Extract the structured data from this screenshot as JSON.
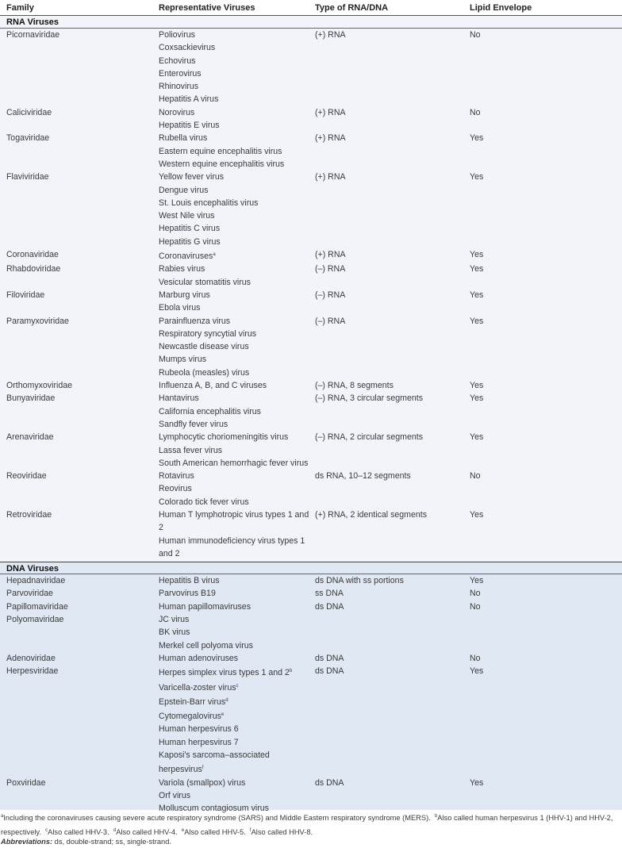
{
  "headers": {
    "family": "Family",
    "viruses": "Representative Viruses",
    "type": "Type of RNA/DNA",
    "envelope": "Lipid Envelope"
  },
  "sections": [
    {
      "title": "RNA Viruses",
      "rows": [
        {
          "family": "Picornaviridae",
          "viruses": [
            "Poliovirus",
            "Coxsackievirus",
            "Echovirus",
            "Enterovirus",
            "Rhinovirus",
            "Hepatitis A virus"
          ],
          "type": "(+) RNA",
          "envelope": "No"
        },
        {
          "family": "Caliciviridae",
          "viruses": [
            "Norovirus",
            "Hepatitis E virus"
          ],
          "type": "(+) RNA",
          "envelope": "No"
        },
        {
          "family": "Togaviridae",
          "viruses": [
            "Rubella virus",
            "Eastern equine encephalitis virus",
            "Western equine encephalitis virus"
          ],
          "type": "(+) RNA",
          "envelope": "Yes"
        },
        {
          "family": "Flaviviridae",
          "viruses": [
            "Yellow fever virus",
            "Dengue virus",
            "St. Louis encephalitis virus",
            "West Nile virus",
            "Hepatitis C virus",
            "Hepatitis G virus"
          ],
          "type": "(+) RNA",
          "envelope": "Yes"
        },
        {
          "family": "Coronaviridae",
          "viruses": [
            "Coronaviruses|a"
          ],
          "type": "(+) RNA",
          "envelope": "Yes"
        },
        {
          "family": "Rhabdoviridae",
          "viruses": [
            "Rabies virus",
            "Vesicular stomatitis virus"
          ],
          "type": "(–) RNA",
          "envelope": "Yes"
        },
        {
          "family": "Filoviridae",
          "viruses": [
            "Marburg virus",
            "Ebola virus"
          ],
          "type": "(–) RNA",
          "envelope": "Yes"
        },
        {
          "family": "Paramyxoviridae",
          "viruses": [
            "Parainfluenza virus",
            "Respiratory syncytial virus",
            "Newcastle disease virus",
            "Mumps virus",
            "Rubeola (measles) virus"
          ],
          "type": "(–) RNA",
          "envelope": "Yes"
        },
        {
          "family": "Orthomyxoviridae",
          "viruses": [
            "Influenza A, B, and C viruses"
          ],
          "type": "(–) RNA, 8 segments",
          "envelope": "Yes"
        },
        {
          "family": "Bunyaviridae",
          "viruses": [
            "Hantavirus",
            "California encephalitis virus",
            "Sandfly fever virus"
          ],
          "type": "(–) RNA, 3 circular segments",
          "envelope": "Yes"
        },
        {
          "family": "Arenaviridae",
          "viruses": [
            "Lymphocytic choriomeningitis virus",
            "Lassa fever virus",
            "South American hemorrhagic fever virus"
          ],
          "type": "(–) RNA, 2 circular segments",
          "envelope": "Yes"
        },
        {
          "family": "Reoviridae",
          "viruses": [
            "Rotavirus",
            "Reovirus",
            "Colorado tick fever virus"
          ],
          "type": "ds RNA, 10–12 segments",
          "envelope": "No"
        },
        {
          "family": "Retroviridae",
          "viruses": [
            "Human T lymphotropic virus types 1 and 2",
            "Human immunodeficiency virus types 1 and 2"
          ],
          "type": "(+) RNA, 2 identical segments",
          "envelope": "Yes"
        }
      ]
    },
    {
      "title": "DNA Viruses",
      "rows": [
        {
          "family": "Hepadnaviridae",
          "viruses": [
            "Hepatitis B virus"
          ],
          "type": "ds DNA with ss portions",
          "envelope": "Yes"
        },
        {
          "family": "Parvoviridae",
          "viruses": [
            "Parvovirus B19"
          ],
          "type": "ss DNA",
          "envelope": "No"
        },
        {
          "family": "Papillomaviridae",
          "viruses": [
            "Human papillomaviruses"
          ],
          "type": "ds DNA",
          "envelope": "No"
        },
        {
          "family": "Polyomaviridae",
          "viruses": [
            "JC virus",
            "BK virus",
            "Merkel cell polyoma virus"
          ],
          "type": "",
          "envelope": ""
        },
        {
          "family": "Adenoviridae",
          "viruses": [
            "Human adenoviruses"
          ],
          "type": "ds DNA",
          "envelope": "No"
        },
        {
          "family": "Herpesviridae",
          "viruses": [
            "Herpes simplex virus types 1 and 2|b",
            "Varicella-zoster virus|c",
            "Epstein-Barr virus|d",
            "Cytomegalovirus|e",
            "Human herpesvirus 6",
            "Human herpesvirus 7",
            "Kaposi's sarcoma–associated herpesvirus|f"
          ],
          "type": "ds DNA",
          "envelope": "Yes"
        },
        {
          "family": "Poxviridae",
          "viruses": [
            "Variola (smallpox) virus",
            "Orf virus",
            "Molluscum contagiosum virus"
          ],
          "type": "ds DNA",
          "envelope": "Yes"
        }
      ]
    }
  ],
  "footnotes": {
    "a_mark": "a",
    "a": "Including the coronaviruses causing severe acute respiratory syndrome (SARS) and Middle Eastern respiratory syndrome (MERS).",
    "b_mark": "b",
    "b": "Also called human herpesvirus 1 (HHV-1) and HHV-2, respectively.",
    "c_mark": "c",
    "c": "Also called HHV-3.",
    "d_mark": "d",
    "d": "Also called HHV-4.",
    "e_mark": "e",
    "e": "Also called HHV-5.",
    "f_mark": "f",
    "f": "Also called HHV-8.",
    "abbr_label": "Abbreviations:",
    "abbr": " ds, double-strand; ss, single-strand."
  },
  "colors": {
    "rna_bg": "#f1f5fa",
    "dna_bg": "#dfe8f3"
  }
}
